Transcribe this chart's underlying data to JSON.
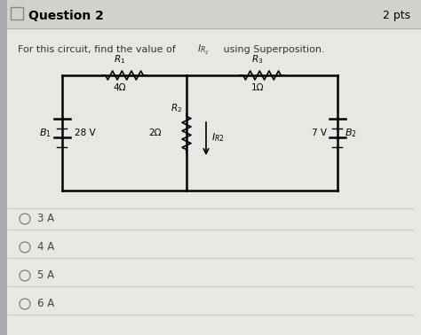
{
  "title": "Question 2",
  "pts": "2 pts",
  "question_text": "For this circuit, find the value of ",
  "question_text2": " using Superposition.",
  "bg_color": "#cccbc7",
  "header_bg": "#c8c7c3",
  "choices": [
    "3 A",
    "4 A",
    "5 A",
    "6 A"
  ],
  "circuit": {
    "B1_label": "B₁",
    "B1_voltage": "28 V",
    "B2_label": "B₂",
    "B2_voltage": "7 V",
    "R1_label": "R₁",
    "R1_value": "4Ω",
    "R2_label": "R₂",
    "R2_value": "2Ω",
    "R3_label": "R₃",
    "R3_value": "1Ω"
  }
}
